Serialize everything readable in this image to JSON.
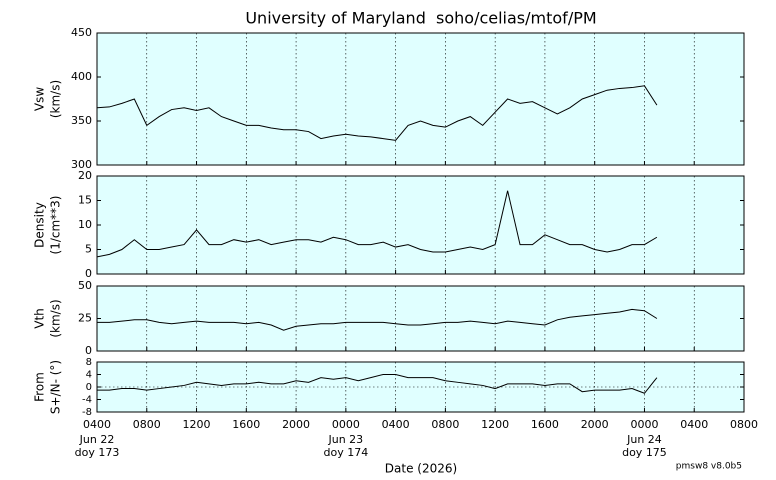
{
  "chart_data": [
    {
      "type": "line",
      "title": "University of Maryland  soho/celias/mtof/PM",
      "ylabel": [
        "Vsw",
        "(km/s)"
      ],
      "color": "#000000",
      "background": "#e0ffff",
      "ylim": [
        300,
        450
      ],
      "yticks": [
        300,
        350,
        400,
        450
      ],
      "xlim": [
        "2026-06-22 04:00",
        "2026-06-24 08:00"
      ],
      "x": [
        "2026-06-22 04:00",
        "2026-06-22 05:00",
        "2026-06-22 06:00",
        "2026-06-22 07:00",
        "2026-06-22 08:00",
        "2026-06-22 09:00",
        "2026-06-22 10:00",
        "2026-06-22 11:00",
        "2026-06-22 12:00",
        "2026-06-22 13:00",
        "2026-06-22 14:00",
        "2026-06-22 15:00",
        "2026-06-22 16:00",
        "2026-06-22 17:00",
        "2026-06-22 18:00",
        "2026-06-22 19:00",
        "2026-06-22 20:00",
        "2026-06-22 21:00",
        "2026-06-22 22:00",
        "2026-06-22 23:00",
        "2026-06-23 00:00",
        "2026-06-23 01:00",
        "2026-06-23 02:00",
        "2026-06-23 03:00",
        "2026-06-23 04:00",
        "2026-06-23 05:00",
        "2026-06-23 06:00",
        "2026-06-23 07:00",
        "2026-06-23 08:00",
        "2026-06-23 09:00",
        "2026-06-23 10:00",
        "2026-06-23 11:00",
        "2026-06-23 12:00",
        "2026-06-23 13:00",
        "2026-06-23 14:00",
        "2026-06-23 15:00",
        "2026-06-23 16:00",
        "2026-06-23 17:00",
        "2026-06-23 18:00",
        "2026-06-23 19:00",
        "2026-06-23 20:00",
        "2026-06-23 21:00",
        "2026-06-23 22:00",
        "2026-06-23 23:00",
        "2026-06-24 00:00",
        "2026-06-24 01:00"
      ],
      "values": [
        365,
        366,
        370,
        375,
        345,
        355,
        363,
        365,
        362,
        365,
        355,
        350,
        345,
        345,
        342,
        340,
        340,
        338,
        330,
        333,
        335,
        333,
        332,
        330,
        328,
        345,
        350,
        345,
        343,
        350,
        355,
        345,
        360,
        375,
        370,
        372,
        365,
        358,
        365,
        375,
        380,
        385,
        387,
        388,
        390,
        368
      ]
    },
    {
      "type": "line",
      "ylabel": [
        "Density",
        "(1/cm**3)"
      ],
      "color": "#000000",
      "background": "#e0ffff",
      "ylim": [
        0,
        20
      ],
      "yticks": [
        0,
        5,
        10,
        15,
        20
      ],
      "xlim": [
        "2026-06-22 04:00",
        "2026-06-24 08:00"
      ],
      "x": [
        "2026-06-22 04:00",
        "2026-06-22 05:00",
        "2026-06-22 06:00",
        "2026-06-22 07:00",
        "2026-06-22 08:00",
        "2026-06-22 09:00",
        "2026-06-22 10:00",
        "2026-06-22 11:00",
        "2026-06-22 12:00",
        "2026-06-22 13:00",
        "2026-06-22 14:00",
        "2026-06-22 15:00",
        "2026-06-22 16:00",
        "2026-06-22 17:00",
        "2026-06-22 18:00",
        "2026-06-22 19:00",
        "2026-06-22 20:00",
        "2026-06-22 21:00",
        "2026-06-22 22:00",
        "2026-06-22 23:00",
        "2026-06-23 00:00",
        "2026-06-23 01:00",
        "2026-06-23 02:00",
        "2026-06-23 03:00",
        "2026-06-23 04:00",
        "2026-06-23 05:00",
        "2026-06-23 06:00",
        "2026-06-23 07:00",
        "2026-06-23 08:00",
        "2026-06-23 09:00",
        "2026-06-23 10:00",
        "2026-06-23 11:00",
        "2026-06-23 12:00",
        "2026-06-23 13:00",
        "2026-06-23 14:00",
        "2026-06-23 15:00",
        "2026-06-23 16:00",
        "2026-06-23 17:00",
        "2026-06-23 18:00",
        "2026-06-23 19:00",
        "2026-06-23 20:00",
        "2026-06-23 21:00",
        "2026-06-23 22:00",
        "2026-06-23 23:00",
        "2026-06-24 00:00",
        "2026-06-24 01:00"
      ],
      "values": [
        3.5,
        4,
        5,
        7,
        5,
        5,
        5.5,
        6,
        9,
        6,
        6,
        7,
        6.5,
        7,
        6,
        6.5,
        7,
        7,
        6.5,
        7.5,
        7,
        6,
        6,
        6.5,
        5.5,
        6,
        5,
        4.5,
        4.5,
        5,
        5.5,
        5,
        6,
        17,
        6,
        6,
        8,
        7,
        6,
        6,
        5,
        4.5,
        5,
        6,
        6,
        7.5
      ]
    },
    {
      "type": "line",
      "ylabel": [
        "Vth",
        "(km/s)"
      ],
      "color": "#000000",
      "background": "#e0ffff",
      "ylim": [
        0,
        50
      ],
      "yticks": [
        0,
        25,
        50
      ],
      "xlim": [
        "2026-06-22 04:00",
        "2026-06-24 08:00"
      ],
      "x": [
        "2026-06-22 04:00",
        "2026-06-22 05:00",
        "2026-06-22 06:00",
        "2026-06-22 07:00",
        "2026-06-22 08:00",
        "2026-06-22 09:00",
        "2026-06-22 10:00",
        "2026-06-22 11:00",
        "2026-06-22 12:00",
        "2026-06-22 13:00",
        "2026-06-22 14:00",
        "2026-06-22 15:00",
        "2026-06-22 16:00",
        "2026-06-22 17:00",
        "2026-06-22 18:00",
        "2026-06-22 19:00",
        "2026-06-22 20:00",
        "2026-06-22 21:00",
        "2026-06-22 22:00",
        "2026-06-22 23:00",
        "2026-06-23 00:00",
        "2026-06-23 01:00",
        "2026-06-23 02:00",
        "2026-06-23 03:00",
        "2026-06-23 04:00",
        "2026-06-23 05:00",
        "2026-06-23 06:00",
        "2026-06-23 07:00",
        "2026-06-23 08:00",
        "2026-06-23 09:00",
        "2026-06-23 10:00",
        "2026-06-23 11:00",
        "2026-06-23 12:00",
        "2026-06-23 13:00",
        "2026-06-23 14:00",
        "2026-06-23 15:00",
        "2026-06-23 16:00",
        "2026-06-23 17:00",
        "2026-06-23 18:00",
        "2026-06-23 19:00",
        "2026-06-23 20:00",
        "2026-06-23 21:00",
        "2026-06-23 22:00",
        "2026-06-23 23:00",
        "2026-06-24 00:00",
        "2026-06-24 01:00"
      ],
      "values": [
        22,
        22,
        23,
        24,
        24,
        22,
        21,
        22,
        23,
        22,
        22,
        22,
        21,
        22,
        20,
        16,
        19,
        20,
        21,
        21,
        22,
        22,
        22,
        22,
        21,
        20,
        20,
        21,
        22,
        22,
        23,
        22,
        21,
        23,
        22,
        21,
        20,
        24,
        26,
        27,
        28,
        29,
        30,
        32,
        31,
        25
      ]
    },
    {
      "type": "line",
      "ylabel": [
        "From",
        "S+/N- (°)"
      ],
      "color": "#000000",
      "background": "#e0ffff",
      "zero_line": true,
      "ylim": [
        -8,
        8
      ],
      "yticks": [
        8,
        4,
        0,
        -4,
        -8
      ],
      "xlim": [
        "2026-06-22 04:00",
        "2026-06-24 08:00"
      ],
      "xlabel": "Date (2026)",
      "xticks": [
        {
          "value": "2026-06-22 04:00",
          "label": "0400",
          "date": "Jun 22",
          "doy": "doy 173"
        },
        {
          "value": "2026-06-22 08:00",
          "label": "0800"
        },
        {
          "value": "2026-06-22 12:00",
          "label": "1200"
        },
        {
          "value": "2026-06-22 16:00",
          "label": "1600"
        },
        {
          "value": "2026-06-22 20:00",
          "label": "2000"
        },
        {
          "value": "2026-06-23 00:00",
          "label": "0000",
          "date": "Jun 23",
          "doy": "doy 174"
        },
        {
          "value": "2026-06-23 04:00",
          "label": "0400"
        },
        {
          "value": "2026-06-23 08:00",
          "label": "0800"
        },
        {
          "value": "2026-06-23 12:00",
          "label": "1200"
        },
        {
          "value": "2026-06-23 16:00",
          "label": "1600"
        },
        {
          "value": "2026-06-23 20:00",
          "label": "2000"
        },
        {
          "value": "2026-06-24 00:00",
          "label": "0000",
          "date": "Jun 24",
          "doy": "doy 175"
        },
        {
          "value": "2026-06-24 04:00",
          "label": "0400"
        },
        {
          "value": "2026-06-24 08:00",
          "label": "0800"
        }
      ],
      "x": [
        "2026-06-22 04:00",
        "2026-06-22 05:00",
        "2026-06-22 06:00",
        "2026-06-22 07:00",
        "2026-06-22 08:00",
        "2026-06-22 09:00",
        "2026-06-22 10:00",
        "2026-06-22 11:00",
        "2026-06-22 12:00",
        "2026-06-22 13:00",
        "2026-06-22 14:00",
        "2026-06-22 15:00",
        "2026-06-22 16:00",
        "2026-06-22 17:00",
        "2026-06-22 18:00",
        "2026-06-22 19:00",
        "2026-06-22 20:00",
        "2026-06-22 21:00",
        "2026-06-22 22:00",
        "2026-06-22 23:00",
        "2026-06-23 00:00",
        "2026-06-23 01:00",
        "2026-06-23 02:00",
        "2026-06-23 03:00",
        "2026-06-23 04:00",
        "2026-06-23 05:00",
        "2026-06-23 06:00",
        "2026-06-23 07:00",
        "2026-06-23 08:00",
        "2026-06-23 09:00",
        "2026-06-23 10:00",
        "2026-06-23 11:00",
        "2026-06-23 12:00",
        "2026-06-23 13:00",
        "2026-06-23 14:00",
        "2026-06-23 15:00",
        "2026-06-23 16:00",
        "2026-06-23 17:00",
        "2026-06-23 18:00",
        "2026-06-23 19:00",
        "2026-06-23 20:00",
        "2026-06-23 21:00",
        "2026-06-23 22:00",
        "2026-06-23 23:00",
        "2026-06-24 00:00",
        "2026-06-24 01:00"
      ],
      "values": [
        -1,
        -1,
        -0.5,
        -0.5,
        -1,
        -0.5,
        0,
        0.5,
        1.5,
        1,
        0.5,
        1,
        1,
        1.5,
        1,
        1,
        2,
        1.5,
        3,
        2.5,
        3,
        2,
        3,
        4,
        4,
        3,
        3,
        3,
        2,
        1.5,
        1,
        0.5,
        -0.5,
        1,
        1,
        1,
        0.5,
        1,
        1,
        -1.5,
        -1,
        -1,
        -1,
        -0.5,
        -2,
        3
      ],
      "footer": "pmsw8 v8.0b5"
    }
  ]
}
